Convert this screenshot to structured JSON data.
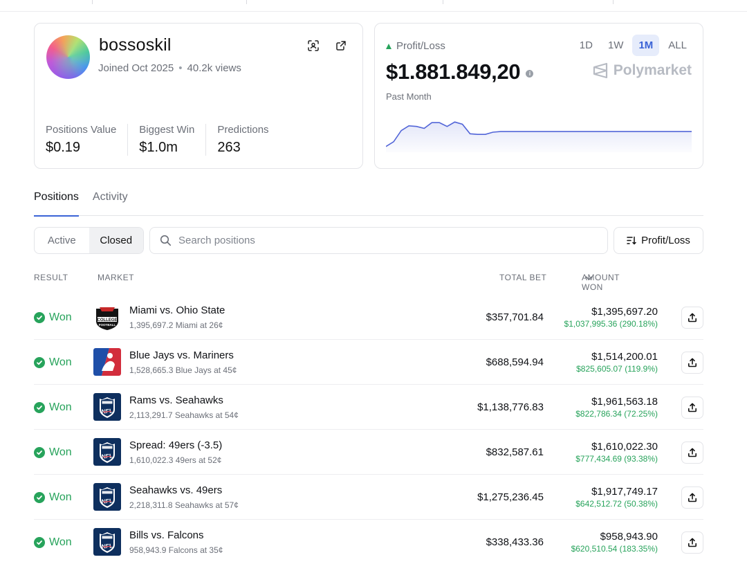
{
  "profile": {
    "username": "bossoskil",
    "joined": "Joined Oct 2025",
    "views": "40.2k views",
    "stats": [
      {
        "label": "Positions Value",
        "value": "$0.19"
      },
      {
        "label": "Biggest Win",
        "value": "$1.0m"
      },
      {
        "label": "Predictions",
        "value": "263"
      }
    ]
  },
  "pnl": {
    "label": "Profit/Loss",
    "value": "$1.881.849,20",
    "period": "Past Month",
    "brand": "Polymarket",
    "ranges": [
      "1D",
      "1W",
      "1M",
      "ALL"
    ],
    "active_range": "1M",
    "accent_color": "#3a63d6",
    "up_color": "#27a35b"
  },
  "chart_data": {
    "type": "area",
    "title": "Profit/Loss — Past Month",
    "xlabel": "",
    "ylabel": "",
    "x": [
      0,
      1,
      2,
      3,
      4,
      5,
      6,
      7,
      8,
      9,
      10,
      11,
      12,
      13,
      14,
      15,
      16,
      17,
      18,
      19,
      20,
      21,
      22,
      23,
      24,
      25,
      26,
      27,
      28,
      29,
      30,
      31,
      32,
      33,
      34,
      35,
      36,
      37,
      38,
      39,
      40
    ],
    "values": [
      0.05,
      0.2,
      0.55,
      0.7,
      0.68,
      0.62,
      0.8,
      0.8,
      0.68,
      0.82,
      0.75,
      0.45,
      0.43,
      0.43,
      0.5,
      0.52,
      0.52,
      0.52,
      0.52,
      0.52,
      0.52,
      0.52,
      0.52,
      0.52,
      0.52,
      0.52,
      0.52,
      0.52,
      0.52,
      0.52,
      0.52,
      0.52,
      0.52,
      0.52,
      0.52,
      0.52,
      0.52,
      0.52,
      0.52,
      0.52,
      0.52
    ],
    "ylim": [
      0,
      1
    ],
    "grid": false,
    "line_color": "#5265d8"
  },
  "tabs": {
    "positions": "Positions",
    "activity": "Activity",
    "active": "Positions"
  },
  "filters": {
    "active": "Active",
    "closed": "Closed",
    "selected": "Closed",
    "search_placeholder": "Search positions",
    "sort_label": "Profit/Loss"
  },
  "table": {
    "headers": {
      "result": "RESULT",
      "market": "MARKET",
      "total_bet": "TOTAL BET",
      "amount_won": "AMOUNT WON"
    },
    "rows": [
      {
        "result": "Won",
        "logo": "college-football",
        "title": "Miami vs. Ohio State",
        "subtitle": "1,395,697.2 Miami at 26¢",
        "total_bet": "$357,701.84",
        "amount_won": "$1,395,697.20",
        "gain": "$1,037,995.36 (290.18%)"
      },
      {
        "result": "Won",
        "logo": "mlb",
        "title": "Blue Jays vs. Mariners",
        "subtitle": "1,528,665.3 Blue Jays at 45¢",
        "total_bet": "$688,594.94",
        "amount_won": "$1,514,200.01",
        "gain": "$825,605.07 (119.9%)"
      },
      {
        "result": "Won",
        "logo": "nfl",
        "title": "Rams vs. Seahawks",
        "subtitle": "2,113,291.7 Seahawks at 54¢",
        "total_bet": "$1,138,776.83",
        "amount_won": "$1,961,563.18",
        "gain": "$822,786.34 (72.25%)"
      },
      {
        "result": "Won",
        "logo": "nfl",
        "title": "Spread: 49ers (-3.5)",
        "subtitle": "1,610,022.3 49ers at 52¢",
        "total_bet": "$832,587.61",
        "amount_won": "$1,610,022.30",
        "gain": "$777,434.69 (93.38%)"
      },
      {
        "result": "Won",
        "logo": "nfl",
        "title": "Seahawks vs. 49ers",
        "subtitle": "2,218,311.8 Seahawks at 57¢",
        "total_bet": "$1,275,236.45",
        "amount_won": "$1,917,749.17",
        "gain": "$642,512.72 (50.38%)"
      },
      {
        "result": "Won",
        "logo": "nfl",
        "title": "Bills vs. Falcons",
        "subtitle": "958,943.9 Falcons at 35¢",
        "total_bet": "$338,433.36",
        "amount_won": "$958,943.90",
        "gain": "$620,510.54 (183.35%)"
      }
    ]
  }
}
